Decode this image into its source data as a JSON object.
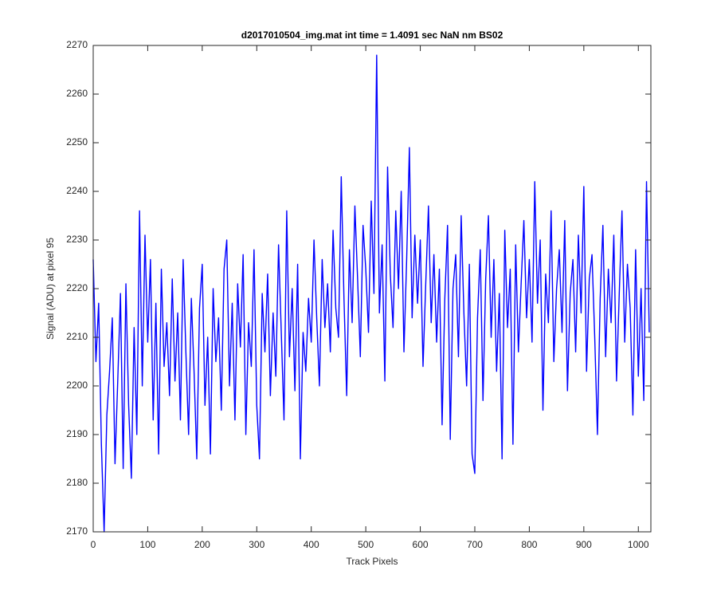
{
  "chart_data": {
    "type": "line",
    "title": "d2017010504_img.mat int time = 1.4091 sec  NaN nm BS02",
    "x_label": "Track Pixels",
    "y_label": "Signal (ADU) at pixel 95",
    "xlim": [
      0,
      1023
    ],
    "ylim": [
      2170,
      2270
    ],
    "xticks": [
      0,
      100,
      200,
      300,
      400,
      500,
      600,
      700,
      800,
      900,
      1000
    ],
    "yticks": [
      2170,
      2180,
      2190,
      2200,
      2210,
      2220,
      2230,
      2240,
      2250,
      2260,
      2270
    ],
    "grid": false,
    "x": [
      0,
      5,
      10,
      15,
      20,
      25,
      30,
      35,
      40,
      45,
      50,
      55,
      60,
      65,
      70,
      75,
      80,
      85,
      90,
      95,
      100,
      105,
      110,
      115,
      120,
      125,
      130,
      135,
      140,
      145,
      150,
      155,
      160,
      165,
      170,
      175,
      180,
      185,
      190,
      195,
      200,
      205,
      210,
      215,
      220,
      225,
      230,
      235,
      240,
      245,
      250,
      255,
      260,
      265,
      270,
      275,
      280,
      285,
      290,
      295,
      300,
      305,
      310,
      315,
      320,
      325,
      330,
      335,
      340,
      345,
      350,
      355,
      360,
      365,
      370,
      375,
      380,
      385,
      390,
      395,
      400,
      405,
      410,
      415,
      420,
      425,
      430,
      435,
      440,
      445,
      450,
      455,
      460,
      465,
      470,
      475,
      480,
      485,
      490,
      495,
      500,
      505,
      510,
      515,
      520,
      525,
      530,
      535,
      540,
      545,
      550,
      555,
      560,
      565,
      570,
      575,
      580,
      585,
      590,
      595,
      600,
      605,
      610,
      615,
      620,
      625,
      630,
      635,
      640,
      645,
      650,
      655,
      660,
      665,
      670,
      675,
      680,
      685,
      690,
      695,
      700,
      705,
      710,
      715,
      720,
      725,
      730,
      735,
      740,
      745,
      750,
      755,
      760,
      765,
      770,
      775,
      780,
      785,
      790,
      795,
      800,
      805,
      810,
      815,
      820,
      825,
      830,
      835,
      840,
      845,
      850,
      855,
      860,
      865,
      870,
      875,
      880,
      885,
      890,
      895,
      900,
      905,
      910,
      915,
      920,
      925,
      930,
      935,
      940,
      945,
      950,
      955,
      960,
      965,
      970,
      975,
      980,
      985,
      990,
      995,
      1000,
      1005,
      1010,
      1015,
      1020
    ],
    "series": [
      {
        "color": "#0000ff",
        "values": [
          2226,
          2205,
          2217,
          2188,
          2170,
          2194,
          2203,
          2214,
          2184,
          2201,
          2219,
          2183,
          2221,
          2196,
          2181,
          2212,
          2190,
          2236,
          2200,
          2231,
          2209,
          2226,
          2193,
          2217,
          2186,
          2224,
          2204,
          2213,
          2198,
          2222,
          2201,
          2215,
          2193,
          2226,
          2207,
          2190,
          2218,
          2203,
          2185,
          2216,
          2225,
          2196,
          2210,
          2186,
          2220,
          2205,
          2214,
          2195,
          2224,
          2230,
          2200,
          2217,
          2193,
          2221,
          2208,
          2227,
          2190,
          2213,
          2204,
          2228,
          2196,
          2185,
          2219,
          2207,
          2223,
          2198,
          2215,
          2202,
          2229,
          2211,
          2193,
          2236,
          2206,
          2220,
          2199,
          2225,
          2185,
          2211,
          2203,
          2218,
          2209,
          2230,
          2214,
          2200,
          2226,
          2212,
          2221,
          2207,
          2232,
          2216,
          2210,
          2243,
          2218,
          2198,
          2228,
          2213,
          2237,
          2222,
          2206,
          2233,
          2224,
          2211,
          2238,
          2219,
          2268,
          2215,
          2229,
          2201,
          2245,
          2223,
          2212,
          2236,
          2220,
          2240,
          2207,
          2226,
          2249,
          2214,
          2231,
          2217,
          2230,
          2204,
          2221,
          2237,
          2213,
          2227,
          2209,
          2224,
          2192,
          2218,
          2233,
          2189,
          2220,
          2227,
          2206,
          2235,
          2215,
          2200,
          2225,
          2186,
          2182,
          2214,
          2228,
          2197,
          2222,
          2235,
          2210,
          2226,
          2203,
          2219,
          2185,
          2232,
          2212,
          2224,
          2188,
          2229,
          2207,
          2221,
          2234,
          2214,
          2226,
          2209,
          2242,
          2217,
          2230,
          2195,
          2223,
          2213,
          2236,
          2205,
          2220,
          2228,
          2211,
          2234,
          2199,
          2219,
          2226,
          2207,
          2231,
          2215,
          2241,
          2203,
          2222,
          2227,
          2210,
          2190,
          2218,
          2233,
          2206,
          2224,
          2213,
          2231,
          2201,
          2219,
          2236,
          2209,
          2225,
          2216,
          2194,
          2228,
          2202,
          2220,
          2197,
          2242,
          2211
        ]
      }
    ]
  }
}
